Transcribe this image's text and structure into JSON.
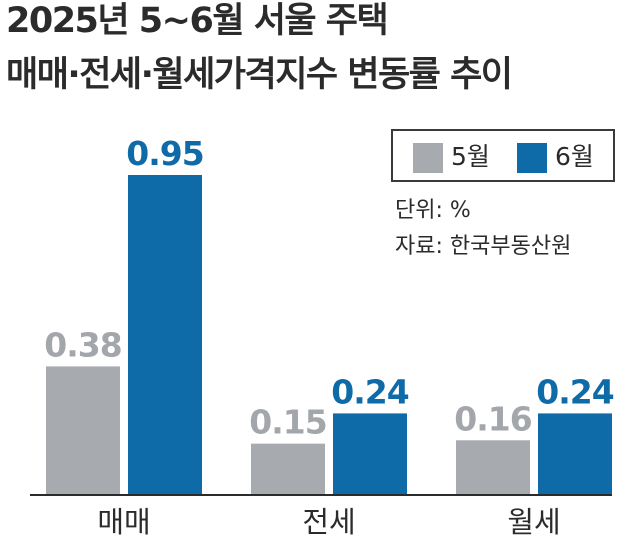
{
  "title": {
    "line1": "2025년 5~6월 서울 주택",
    "line2": "매매·전세·월세가격지수 변동률 추이"
  },
  "legend": {
    "items": [
      {
        "label": "5월",
        "color": "#a7abb0"
      },
      {
        "label": "6월",
        "color": "#0f6aa8"
      }
    ]
  },
  "notes": {
    "unit": "단위: %",
    "source": "자료: 한국부동산원"
  },
  "colors": {
    "may": "#a7abb0",
    "june": "#0f6aa8",
    "may_label": "#a3a7ac",
    "june_label": "#0f6aa8",
    "text": "#2b2b2b"
  },
  "chart_data": {
    "type": "bar",
    "title": "2025년 5~6월 서울 주택 매매·전세·월세가격지수 변동률 추이",
    "categories": [
      "매매",
      "전세",
      "월세"
    ],
    "series": [
      {
        "name": "5월",
        "values": [
          0.38,
          0.15,
          0.16
        ]
      },
      {
        "name": "6월",
        "values": [
          0.95,
          0.24,
          0.24
        ]
      }
    ],
    "unit": "%",
    "ylim": [
      0,
      0.95
    ],
    "grid": false,
    "legend_position": "top-right"
  }
}
